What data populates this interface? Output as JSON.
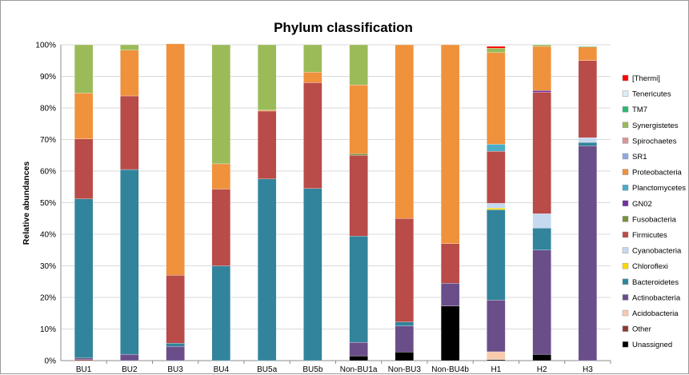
{
  "chart_data": {
    "type": "bar",
    "stacked": true,
    "title": "Phylum classification",
    "xlabel": "",
    "ylabel": "Relative abundances",
    "ylim": [
      0,
      100
    ],
    "yticks": [
      "0%",
      "10%",
      "20%",
      "30%",
      "40%",
      "50%",
      "60%",
      "70%",
      "80%",
      "90%",
      "100%"
    ],
    "grid": true,
    "legend_position": "right",
    "categories": [
      "BU1",
      "BU2",
      "BU3",
      "BU4",
      "BU5a",
      "BU5b",
      "Non-BU1a",
      "Non-BU3",
      "Non-BU4b",
      "H1",
      "H2",
      "H3"
    ],
    "series": [
      {
        "name": "Unassigned",
        "color": "#000000",
        "values": [
          0,
          0,
          0,
          0,
          0,
          0,
          1.5,
          2.7,
          17.3,
          0.3,
          2,
          0
        ]
      },
      {
        "name": "Other",
        "color": "#8B3A2E",
        "values": [
          0.3,
          0,
          0,
          0,
          0,
          0,
          0,
          0,
          0,
          0,
          0,
          0
        ]
      },
      {
        "name": "Acidobacteria",
        "color": "#F8CBAD",
        "values": [
          0,
          0,
          0,
          0,
          0,
          0,
          0,
          0,
          0,
          2.5,
          0,
          0
        ]
      },
      {
        "name": "Actinobacteria",
        "color": "#6A4E8A",
        "values": [
          0.5,
          2,
          4.5,
          0,
          0,
          0,
          4.3,
          8.3,
          7.2,
          16.4,
          33,
          68
        ]
      },
      {
        "name": "Bacteroidetes",
        "color": "#31849B",
        "values": [
          50.4,
          58.5,
          1,
          30,
          57.5,
          54.5,
          33.6,
          1.2,
          0,
          28.6,
          7,
          1.1
        ]
      },
      {
        "name": "Chloroflexi",
        "color": "#FFD700",
        "values": [
          0,
          0,
          0,
          0,
          0,
          0,
          0,
          0,
          0,
          0.5,
          0,
          0
        ]
      },
      {
        "name": "Cyanobacteria",
        "color": "#C5D9F1",
        "values": [
          0,
          0,
          0,
          0,
          0,
          0,
          0,
          0,
          0,
          1.5,
          4.5,
          1.5
        ]
      },
      {
        "name": "Firmicutes",
        "color": "#B94B48",
        "values": [
          19,
          23.3,
          21.5,
          24.3,
          21.5,
          33.5,
          25.6,
          32.8,
          12.5,
          16.5,
          38.5,
          24.4
        ]
      },
      {
        "name": "Fusobacteria",
        "color": "#76923C",
        "values": [
          0,
          0,
          0,
          0,
          0,
          0,
          0.5,
          0,
          0,
          0,
          0,
          0
        ]
      },
      {
        "name": "GN02",
        "color": "#7030A0",
        "values": [
          0,
          0,
          0,
          0,
          0,
          0,
          0,
          0,
          0,
          0,
          0.5,
          0
        ]
      },
      {
        "name": "Planctomycetes",
        "color": "#4BACC6",
        "values": [
          0,
          0,
          0,
          0,
          0,
          0,
          0,
          0,
          0,
          2.2,
          0,
          0
        ]
      },
      {
        "name": "Proteobacteria",
        "color": "#F0913C",
        "values": [
          14.5,
          14.5,
          73.3,
          8,
          0.3,
          3.3,
          21.8,
          55,
          63,
          29,
          14,
          4.3
        ]
      },
      {
        "name": "SR1",
        "color": "#8EA9DB",
        "values": [
          0,
          0,
          0,
          0,
          0,
          0,
          0,
          0,
          0,
          0,
          0,
          0
        ]
      },
      {
        "name": "Spirochaetes",
        "color": "#D99594",
        "values": [
          0,
          0,
          0,
          0,
          0,
          0,
          0,
          0,
          0,
          0,
          0,
          0
        ]
      },
      {
        "name": "Synergistetes",
        "color": "#9BBB59",
        "values": [
          15.3,
          1.7,
          0,
          37.7,
          20.7,
          8.7,
          12.7,
          0,
          0,
          1.4,
          0.5,
          0
        ]
      },
      {
        "name": "TM7",
        "color": "#2DB870",
        "values": [
          0,
          0,
          0,
          0,
          0,
          0,
          0,
          0,
          0,
          0,
          0,
          0.2
        ]
      },
      {
        "name": "Tenericutes",
        "color": "#DBEEF4",
        "values": [
          0,
          0,
          0,
          0,
          0,
          0,
          0,
          0,
          0,
          0,
          0,
          0
        ]
      },
      {
        "name": "[Thermi]",
        "color": "#FF0000",
        "values": [
          0,
          0,
          0,
          0,
          0,
          0,
          0,
          0,
          0,
          0.6,
          0,
          0
        ]
      }
    ]
  }
}
